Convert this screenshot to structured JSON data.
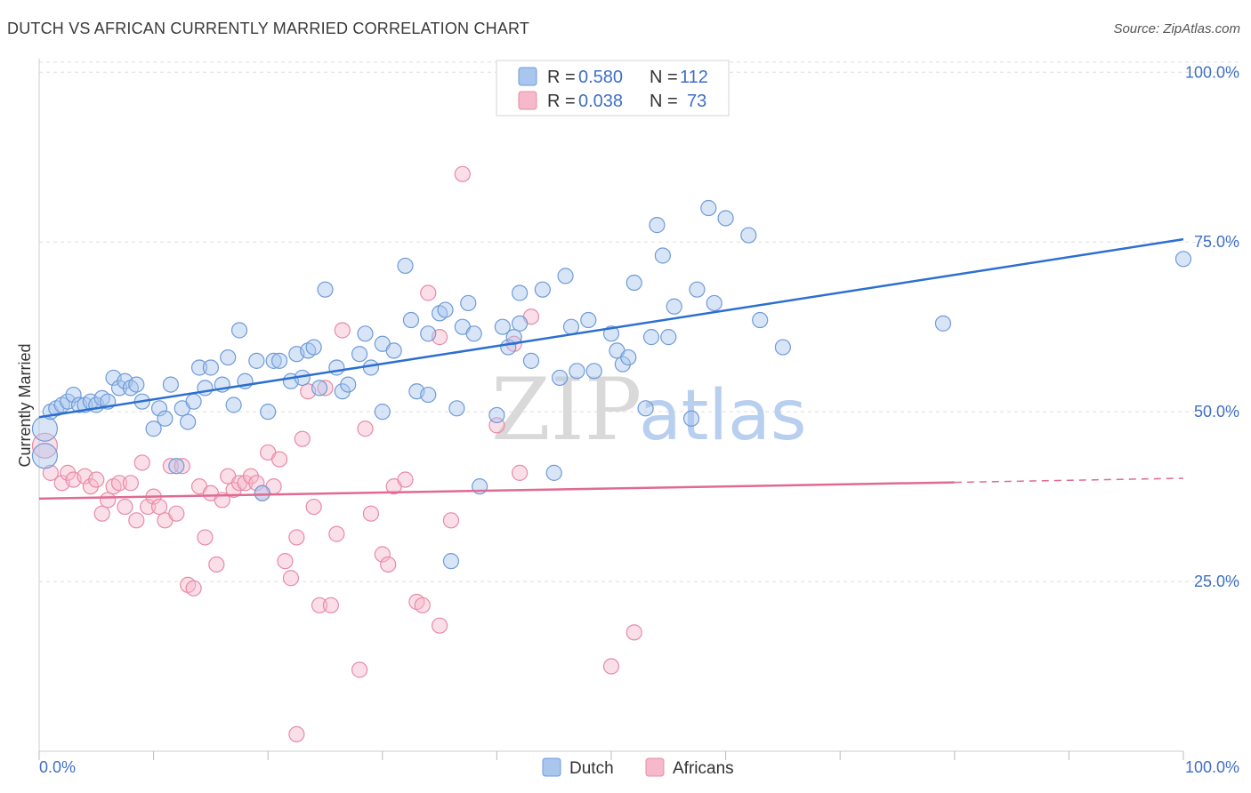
{
  "header": {
    "title": "DUTCH VS AFRICAN CURRENTLY MARRIED CORRELATION CHART",
    "source": "Source: ZipAtlas.com"
  },
  "colors": {
    "dutch_fill": "#a9c6ee",
    "dutch_stroke": "#6f9bd8",
    "dutch_line": "#2c6fd1",
    "africans_fill": "#f6b9cb",
    "africans_stroke": "#e88aa6",
    "africans_line": "#e06a93",
    "tick_label": "#3f6fc6",
    "grid": "#dddddd"
  },
  "chart_data": {
    "type": "scatter",
    "title": "DUTCH VS AFRICAN CURRENTLY MARRIED CORRELATION CHART",
    "xlabel": "",
    "ylabel": "Currently Married",
    "xlim": [
      0,
      100
    ],
    "ylim": [
      0,
      102
    ],
    "x_tick_labels": {
      "left": "0.0%",
      "right": "100.0%"
    },
    "y_tick_labels": [
      {
        "value": 100,
        "label": "100.0%"
      },
      {
        "value": 75,
        "label": "75.0%"
      },
      {
        "value": 50,
        "label": "50.0%"
      },
      {
        "value": 25,
        "label": "25.0%"
      }
    ],
    "watermark": {
      "part1": "ZIP",
      "part2": "atlas"
    },
    "legend": [
      {
        "series": "Dutch",
        "r_label": "R =",
        "r_value": "0.580",
        "n_label": "N =",
        "n_value": "112"
      },
      {
        "series": "Africans",
        "r_label": "R =",
        "r_value": "0.038",
        "n_label": "N =",
        "n_value": "73"
      }
    ],
    "series": [
      {
        "name": "Dutch",
        "trend": {
          "x0": 0,
          "y0": 49.2,
          "x1": 100,
          "y1": 75.4
        },
        "points": [
          [
            0.5,
            47.5
          ],
          [
            0.5,
            43.5
          ],
          [
            1,
            50
          ],
          [
            1.5,
            50.5
          ],
          [
            2,
            51
          ],
          [
            2.5,
            51.5
          ],
          [
            3,
            52.5
          ],
          [
            3.5,
            51
          ],
          [
            4,
            51
          ],
          [
            4.5,
            51.5
          ],
          [
            5,
            51
          ],
          [
            5.5,
            52
          ],
          [
            6,
            51.5
          ],
          [
            6.5,
            55
          ],
          [
            7,
            53.5
          ],
          [
            7.5,
            54.5
          ],
          [
            8,
            53.5
          ],
          [
            8.5,
            54
          ],
          [
            9,
            51.5
          ],
          [
            10,
            47.5
          ],
          [
            10.5,
            50.5
          ],
          [
            11,
            49
          ],
          [
            11.5,
            54
          ],
          [
            12,
            42
          ],
          [
            12.5,
            50.5
          ],
          [
            13,
            48.5
          ],
          [
            13.5,
            51.5
          ],
          [
            14,
            56.5
          ],
          [
            14.5,
            53.5
          ],
          [
            15,
            56.5
          ],
          [
            16,
            54
          ],
          [
            16.5,
            58
          ],
          [
            17,
            51
          ],
          [
            17.5,
            62
          ],
          [
            18,
            54.5
          ],
          [
            19,
            57.5
          ],
          [
            19.5,
            38
          ],
          [
            20,
            50
          ],
          [
            20.5,
            57.5
          ],
          [
            21,
            57.5
          ],
          [
            22,
            54.5
          ],
          [
            22.5,
            58.5
          ],
          [
            23,
            55
          ],
          [
            23.5,
            59
          ],
          [
            24,
            59.5
          ],
          [
            24.5,
            53.5
          ],
          [
            25,
            68
          ],
          [
            26,
            56.5
          ],
          [
            26.5,
            53
          ],
          [
            27,
            54
          ],
          [
            28,
            58.5
          ],
          [
            28.5,
            61.5
          ],
          [
            29,
            56.5
          ],
          [
            30,
            60
          ],
          [
            30,
            50
          ],
          [
            31,
            59
          ],
          [
            32,
            71.5
          ],
          [
            32.5,
            63.5
          ],
          [
            33,
            53
          ],
          [
            34,
            52.5
          ],
          [
            34,
            61.5
          ],
          [
            35,
            64.5
          ],
          [
            35.5,
            65
          ],
          [
            36,
            28
          ],
          [
            36.5,
            50.5
          ],
          [
            37,
            62.5
          ],
          [
            37.5,
            66
          ],
          [
            38,
            61.5
          ],
          [
            38.5,
            39
          ],
          [
            40,
            49.5
          ],
          [
            40.5,
            62.5
          ],
          [
            41,
            59.5
          ],
          [
            41.5,
            61
          ],
          [
            42,
            63
          ],
          [
            42,
            67.5
          ],
          [
            43,
            57.5
          ],
          [
            44,
            68
          ],
          [
            45,
            41
          ],
          [
            45.5,
            55
          ],
          [
            46,
            70
          ],
          [
            46.5,
            62.5
          ],
          [
            47,
            56
          ],
          [
            48,
            63.5
          ],
          [
            48.5,
            56
          ],
          [
            50,
            61.5
          ],
          [
            50.5,
            59
          ],
          [
            51,
            57
          ],
          [
            52,
            69
          ],
          [
            51.5,
            58
          ],
          [
            53,
            50.5
          ],
          [
            53.5,
            61
          ],
          [
            54,
            77.5
          ],
          [
            54.5,
            73
          ],
          [
            55,
            61
          ],
          [
            55.5,
            65.5
          ],
          [
            57,
            49
          ],
          [
            57.5,
            68
          ],
          [
            58.5,
            80
          ],
          [
            59,
            66
          ],
          [
            60,
            78.5
          ],
          [
            62,
            76
          ],
          [
            63,
            63.5
          ],
          [
            65,
            59.5
          ],
          [
            79,
            63
          ],
          [
            100,
            72.5
          ]
        ]
      },
      {
        "name": "Africans",
        "trend": {
          "x0": 0,
          "y0": 37.2,
          "x1": 100,
          "y1": 40.2,
          "solid_until_x": 80
        },
        "points": [
          [
            0.5,
            45
          ],
          [
            1,
            41
          ],
          [
            2,
            39.5
          ],
          [
            2.5,
            41
          ],
          [
            3,
            40
          ],
          [
            4,
            40.5
          ],
          [
            4.5,
            39
          ],
          [
            5,
            40
          ],
          [
            5.5,
            35
          ],
          [
            6,
            37
          ],
          [
            6.5,
            39
          ],
          [
            7,
            39.5
          ],
          [
            7.5,
            36
          ],
          [
            8,
            39.5
          ],
          [
            8.5,
            34
          ],
          [
            9,
            42.5
          ],
          [
            9.5,
            36
          ],
          [
            10,
            37.5
          ],
          [
            10.5,
            36
          ],
          [
            11,
            34
          ],
          [
            11.5,
            42
          ],
          [
            12,
            35
          ],
          [
            12.5,
            42
          ],
          [
            13,
            24.5
          ],
          [
            13.5,
            24
          ],
          [
            14,
            39
          ],
          [
            14.5,
            31.5
          ],
          [
            15,
            38
          ],
          [
            15.5,
            27.5
          ],
          [
            16,
            37
          ],
          [
            16.5,
            40.5
          ],
          [
            17,
            38.5
          ],
          [
            17.5,
            39.5
          ],
          [
            18,
            39.5
          ],
          [
            18.5,
            40.5
          ],
          [
            19,
            39.5
          ],
          [
            19.5,
            38
          ],
          [
            20,
            44
          ],
          [
            20.5,
            39
          ],
          [
            21,
            43
          ],
          [
            21.5,
            28
          ],
          [
            22,
            25.5
          ],
          [
            22.5,
            31.5
          ],
          [
            22.5,
            2.5
          ],
          [
            23,
            46
          ],
          [
            23.5,
            53
          ],
          [
            24,
            36
          ],
          [
            24.5,
            21.5
          ],
          [
            25,
            53.5
          ],
          [
            25.5,
            21.5
          ],
          [
            26,
            32
          ],
          [
            26.5,
            62
          ],
          [
            28,
            12
          ],
          [
            28.5,
            47.5
          ],
          [
            29,
            35
          ],
          [
            30,
            29
          ],
          [
            30.5,
            27.5
          ],
          [
            31,
            39
          ],
          [
            32,
            40
          ],
          [
            33,
            22
          ],
          [
            33.5,
            21.5
          ],
          [
            34,
            67.5
          ],
          [
            35,
            18.5
          ],
          [
            35,
            61
          ],
          [
            36,
            34
          ],
          [
            37,
            85
          ],
          [
            40,
            48
          ],
          [
            41.5,
            60
          ],
          [
            42,
            41
          ],
          [
            43,
            64
          ],
          [
            50,
            12.5
          ],
          [
            52,
            17.5
          ]
        ]
      }
    ]
  },
  "bottom_legend": [
    {
      "label": "Dutch"
    },
    {
      "label": "Africans"
    }
  ]
}
